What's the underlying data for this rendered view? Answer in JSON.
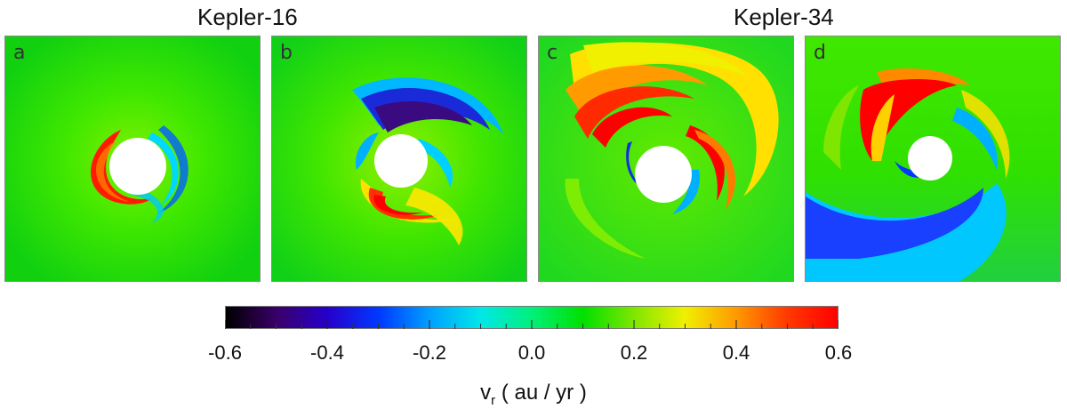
{
  "group_titles": [
    "Kepler-16",
    "Kepler-34"
  ],
  "panels": [
    {
      "label": "a"
    },
    {
      "label": "b"
    },
    {
      "label": "c"
    },
    {
      "label": "d"
    }
  ],
  "colorbar": {
    "min": -0.6,
    "max": 0.6,
    "tick_labels": [
      "-0.6",
      "-0.4",
      "-0.2",
      "0.0",
      "0.2",
      "0.4",
      "0.6"
    ],
    "colormap": [
      "#000000",
      "#3a006a",
      "#2600cc",
      "#0038ff",
      "#00a0ff",
      "#00e8e8",
      "#00f07a",
      "#00e000",
      "#7ee600",
      "#f0f000",
      "#ff9a00",
      "#ff3a00",
      "#ff0000"
    ]
  },
  "axis_title": {
    "symbol": "v",
    "subscript": "r",
    "units": " ( au / yr )"
  }
}
